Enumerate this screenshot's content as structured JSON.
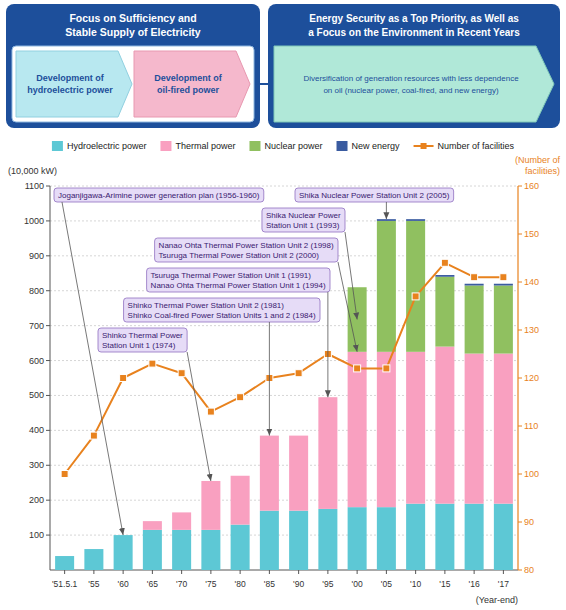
{
  "chart_data": {
    "type": "bar",
    "stacked": true,
    "grid": true,
    "legend": "top",
    "annotations": [
      "Focus on Sufficiency and\nStable Supply of Electricity",
      "Development of\nhydroelectric power",
      "Development of\noil-fired power",
      "Energy Security as a Top Priority, as Well as\na Focus on the Environment in Recent Years",
      "Diversification of generation resources with less dependence\non oil (nuclear power, coal-fired, and new energy)",
      "Shika Nuclear Power Station Unit 2 (2005)",
      "Nanao Ohta Thermal Power Station Unit 2 (1998)\nTsuruga Thermal Power Station Unit 2 (2000)",
      "Tsuruga Thermal Power Station Unit 1 (1991)\nNanao Ohta Thermal Power Station Unit 1 (1994)",
      "Shika Nuclear Power\nStation Unit 1 (1993)",
      "Joganjigawa-Arimine power generation plan (1956-1960)",
      "Shinko Thermal Power Station Unit 2 (1981)\nShinko Coal-fired Power Station Units 1 and 2 (1984)",
      "Shinko Thermal Power\nStation Unit 1 (1974)"
    ],
    "categories": [
      "'51.5.1",
      "'55",
      "'60",
      "'65",
      "'70",
      "'75",
      "'80",
      "'85",
      "'90",
      "'95",
      "'00",
      "'05",
      "'10",
      "'15",
      "'16",
      "'17"
    ],
    "xlabel": "(Year-end)",
    "ylabel": "(10,000 kW)",
    "y2label": "(Number of\nfacilities)",
    "ylim": [
      0,
      1100
    ],
    "yticks": [
      100,
      200,
      300,
      400,
      500,
      600,
      700,
      800,
      900,
      1000,
      1100
    ],
    "y2lim": [
      80,
      160
    ],
    "y2ticks": [
      80,
      90,
      100,
      110,
      120,
      130,
      140,
      150,
      160
    ],
    "series": [
      {
        "name": "Hydroelectric power",
        "color": "#5DC8D5",
        "values": [
          40,
          60,
          100,
          115,
          115,
          115,
          130,
          170,
          170,
          175,
          180,
          180,
          190,
          190,
          190,
          190
        ]
      },
      {
        "name": "Thermal power",
        "color": "#F9A0C0",
        "values": [
          0,
          0,
          0,
          25,
          50,
          140,
          140,
          215,
          215,
          320,
          445,
          445,
          435,
          450,
          430,
          430
        ]
      },
      {
        "name": "Nuclear power",
        "color": "#90C060",
        "values": [
          0,
          0,
          0,
          0,
          0,
          0,
          0,
          0,
          0,
          0,
          185,
          375,
          375,
          200,
          195,
          195
        ]
      },
      {
        "name": "New energy",
        "color": "#3A5BA0",
        "values": [
          0,
          0,
          0,
          0,
          0,
          0,
          0,
          0,
          0,
          0,
          0,
          5,
          5,
          5,
          5,
          5
        ]
      },
      {
        "name": "Number of facilities",
        "type": "line",
        "axis": "y2",
        "color": "#E8821E",
        "marker": "square",
        "values": [
          100,
          108,
          120,
          123,
          121,
          113,
          116,
          120,
          121,
          125,
          122,
          122,
          137,
          144,
          141,
          141
        ]
      }
    ]
  }
}
